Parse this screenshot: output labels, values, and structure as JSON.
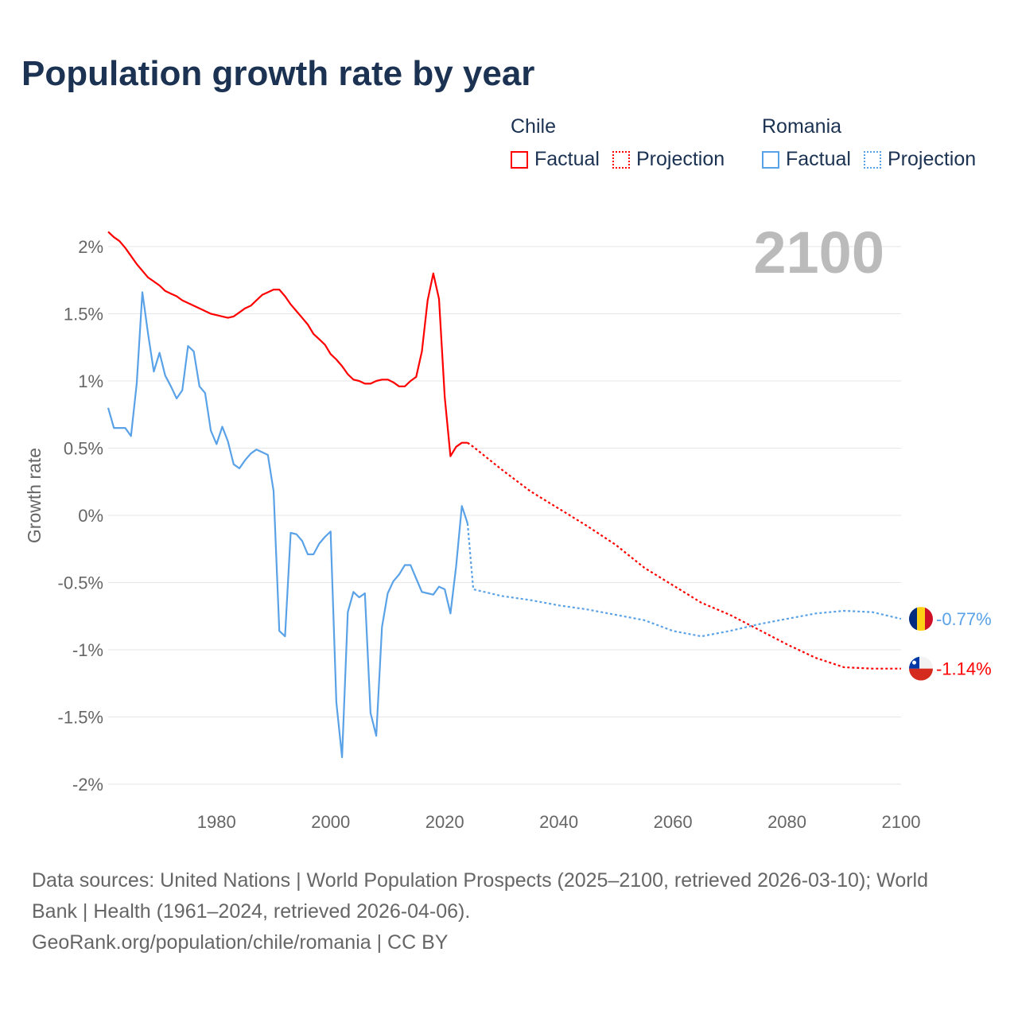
{
  "title": "Population growth rate by year",
  "legend": {
    "groups": [
      {
        "name": "Chile",
        "factual": "Factual",
        "projection": "Projection",
        "color": "#ff0000"
      },
      {
        "name": "Romania",
        "factual": "Factual",
        "projection": "Projection",
        "color": "#5aa2e8"
      }
    ]
  },
  "source": {
    "line1": "Data sources: United Nations | World Population Prospects (2025–2100, retrieved 2026-03-10); World Bank | Health (1961–2024, retrieved 2026-04-06).",
    "line2": "GeoRank.org/population/chile/romania | CC BY"
  },
  "chart_data": {
    "type": "line",
    "title": "Population growth rate by year",
    "xlabel": "",
    "ylabel": "Growth rate",
    "year_label": "2100",
    "xlim": [
      1961,
      2100
    ],
    "ylim": [
      -2.2,
      2.2
    ],
    "x_ticks": [
      1980,
      2000,
      2020,
      2040,
      2060,
      2080,
      2100
    ],
    "y_ticks": [
      2,
      1.5,
      1,
      0.5,
      0,
      -0.5,
      -1,
      -1.5,
      -2
    ],
    "y_tick_labels": [
      "2%",
      "1.5%",
      "1%",
      "0.5%",
      "0%",
      "-0.5%",
      "-1%",
      "-1.5%",
      "-2%"
    ],
    "grid": true,
    "series": [
      {
        "name": "Chile",
        "color": "#ff0000",
        "end_label": "-1.14%",
        "flag": "chile-flag",
        "factual": {
          "x": [
            1961,
            1962,
            1963,
            1964,
            1965,
            1966,
            1967,
            1968,
            1969,
            1970,
            1971,
            1972,
            1973,
            1974,
            1975,
            1976,
            1977,
            1978,
            1979,
            1980,
            1981,
            1982,
            1983,
            1984,
            1985,
            1986,
            1987,
            1988,
            1989,
            1990,
            1991,
            1992,
            1993,
            1994,
            1995,
            1996,
            1997,
            1998,
            1999,
            2000,
            2001,
            2002,
            2003,
            2004,
            2005,
            2006,
            2007,
            2008,
            2009,
            2010,
            2011,
            2012,
            2013,
            2014,
            2015,
            2016,
            2017,
            2018,
            2019,
            2020,
            2021,
            2022,
            2023,
            2024
          ],
          "y": [
            2.11,
            2.07,
            2.04,
            1.99,
            1.93,
            1.87,
            1.82,
            1.77,
            1.74,
            1.71,
            1.67,
            1.65,
            1.63,
            1.6,
            1.58,
            1.56,
            1.54,
            1.52,
            1.5,
            1.49,
            1.48,
            1.47,
            1.48,
            1.51,
            1.54,
            1.56,
            1.6,
            1.64,
            1.66,
            1.68,
            1.68,
            1.63,
            1.57,
            1.52,
            1.47,
            1.42,
            1.35,
            1.31,
            1.27,
            1.2,
            1.16,
            1.11,
            1.05,
            1.01,
            1.0,
            0.98,
            0.98,
            1.0,
            1.01,
            1.01,
            0.99,
            0.96,
            0.96,
            1.0,
            1.03,
            1.22,
            1.6,
            1.8,
            1.61,
            0.88,
            0.44,
            0.51,
            0.54,
            0.54
          ]
        },
        "projection": {
          "x": [
            2024,
            2025,
            2030,
            2035,
            2040,
            2045,
            2050,
            2055,
            2060,
            2065,
            2070,
            2075,
            2080,
            2085,
            2090,
            2095,
            2100
          ],
          "y": [
            0.54,
            0.51,
            0.34,
            0.18,
            0.05,
            -0.08,
            -0.22,
            -0.39,
            -0.52,
            -0.65,
            -0.74,
            -0.85,
            -0.96,
            -1.06,
            -1.13,
            -1.14,
            -1.14
          ]
        }
      },
      {
        "name": "Romania",
        "color": "#5aa2e8",
        "end_label": "-0.77%",
        "flag": "romania-flag",
        "factual": {
          "x": [
            1961,
            1962,
            1963,
            1964,
            1965,
            1966,
            1967,
            1968,
            1969,
            1970,
            1971,
            1972,
            1973,
            1974,
            1975,
            1976,
            1977,
            1978,
            1979,
            1980,
            1981,
            1982,
            1983,
            1984,
            1985,
            1986,
            1987,
            1988,
            1989,
            1990,
            1991,
            1992,
            1993,
            1994,
            1995,
            1996,
            1997,
            1998,
            1999,
            2000,
            2001,
            2002,
            2003,
            2004,
            2005,
            2006,
            2007,
            2008,
            2009,
            2010,
            2011,
            2012,
            2013,
            2014,
            2015,
            2016,
            2017,
            2018,
            2019,
            2020,
            2021,
            2022,
            2023,
            2024
          ],
          "y": [
            0.8,
            0.65,
            0.65,
            0.65,
            0.59,
            0.98,
            1.66,
            1.35,
            1.07,
            1.21,
            1.04,
            0.96,
            0.87,
            0.93,
            1.26,
            1.22,
            0.96,
            0.91,
            0.63,
            0.53,
            0.66,
            0.55,
            0.38,
            0.35,
            0.41,
            0.46,
            0.49,
            0.47,
            0.45,
            0.18,
            -0.86,
            -0.9,
            -0.13,
            -0.14,
            -0.19,
            -0.29,
            -0.29,
            -0.21,
            -0.16,
            -0.12,
            -1.39,
            -1.8,
            -0.72,
            -0.57,
            -0.61,
            -0.58,
            -1.47,
            -1.64,
            -0.83,
            -0.58,
            -0.49,
            -0.44,
            -0.37,
            -0.37,
            -0.47,
            -0.57,
            -0.58,
            -0.59,
            -0.53,
            -0.55,
            -0.73,
            -0.38,
            0.07,
            -0.06
          ]
        },
        "projection": {
          "x": [
            2024,
            2025,
            2030,
            2035,
            2040,
            2045,
            2050,
            2055,
            2060,
            2065,
            2070,
            2075,
            2080,
            2085,
            2090,
            2095,
            2100
          ],
          "y": [
            -0.06,
            -0.55,
            -0.6,
            -0.63,
            -0.67,
            -0.7,
            -0.74,
            -0.78,
            -0.86,
            -0.9,
            -0.86,
            -0.81,
            -0.77,
            -0.73,
            -0.71,
            -0.72,
            -0.77
          ]
        }
      }
    ]
  }
}
